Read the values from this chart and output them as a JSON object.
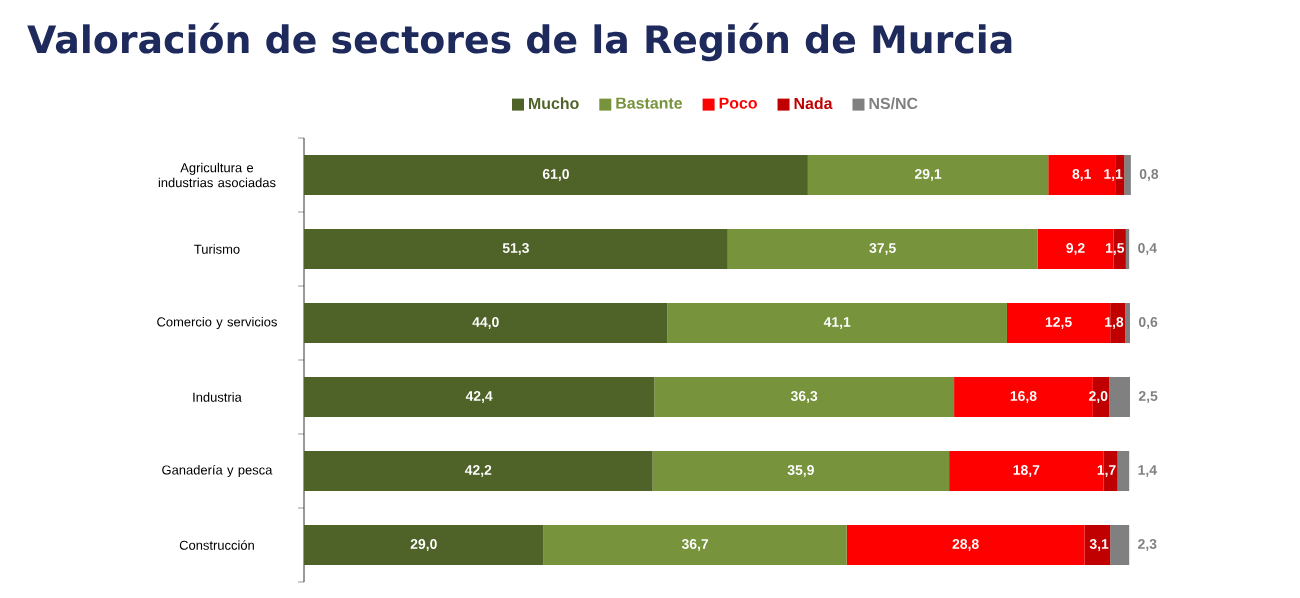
{
  "chart_data": {
    "type": "bar",
    "orientation": "horizontal",
    "stacked": true,
    "title": "Valoración de sectores de la Región de Murcia",
    "categories": [
      "Agricultura e industrias asociadas",
      "Turismo",
      "Comercio y servicios",
      "Industria",
      "Ganadería y pesca",
      "Construcción"
    ],
    "xlim": [
      0,
      100
    ],
    "tick_labels": "y",
    "legend": "top",
    "grid": false,
    "series": [
      {
        "name": "Mucho",
        "color": "#4f6228",
        "values": [
          61.0,
          51.3,
          44.0,
          42.4,
          42.2,
          29.0
        ],
        "value_labels": [
          "61,0",
          "51,3",
          "44,0",
          "42,4",
          "42,2",
          "29,0"
        ]
      },
      {
        "name": "Bastante",
        "color": "#77933c",
        "values": [
          29.1,
          37.5,
          41.1,
          36.3,
          35.9,
          36.7
        ],
        "value_labels": [
          "29,1",
          "37,5",
          "41,1",
          "36,3",
          "35,9",
          "36,7"
        ]
      },
      {
        "name": "Poco",
        "color": "#ff0000",
        "values": [
          8.1,
          9.2,
          12.5,
          16.8,
          18.7,
          28.8
        ],
        "value_labels": [
          "8,1",
          "9,2",
          "12,5",
          "16,8",
          "18,7",
          "28,8"
        ]
      },
      {
        "name": "Nada",
        "color": "#c00000",
        "values": [
          1.1,
          1.5,
          1.8,
          2.0,
          1.7,
          3.1
        ],
        "value_labels": [
          "1,1",
          "1,5",
          "1,8",
          "2,0",
          "1,7",
          "3,1"
        ]
      },
      {
        "name": "NS/NC",
        "color": "#808080",
        "values": [
          0.8,
          0.4,
          0.6,
          2.5,
          1.4,
          2.3
        ],
        "value_labels": [
          "0,8",
          "0,4",
          "0,6",
          "2,5",
          "1,4",
          "2,3"
        ]
      }
    ]
  }
}
